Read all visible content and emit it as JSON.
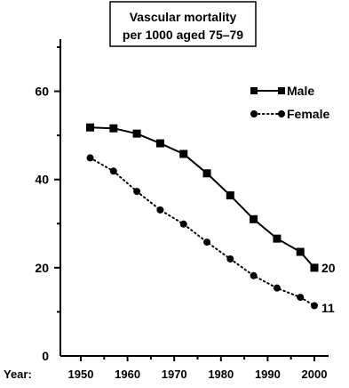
{
  "chart_data": {
    "type": "line",
    "title_lines": [
      "Vascular mortality",
      "per 1000 aged 75–79"
    ],
    "x_axis_prefix": "Year:",
    "x": [
      1952,
      1957,
      1962,
      1967,
      1972,
      1977,
      1982,
      1987,
      1992,
      1997,
      2000
    ],
    "xticks": [
      "1950",
      "1960",
      "1970",
      "1980",
      "1990",
      "2000"
    ],
    "yticks": [
      "0",
      "20",
      "40",
      "60"
    ],
    "xlim": [
      1950,
      2000
    ],
    "ylim": [
      0,
      70
    ],
    "grid": false,
    "legend_position": "top-right",
    "series": [
      {
        "name": "Male",
        "marker": "square",
        "line": "solid",
        "color": "#000000",
        "values": [
          51.8,
          51.6,
          50.4,
          48.2,
          45.8,
          41.4,
          36.4,
          31.0,
          26.6,
          23.6,
          20.0
        ],
        "end_label": "20"
      },
      {
        "name": "Female",
        "marker": "circle",
        "line": "dotted",
        "color": "#000000",
        "values": [
          44.9,
          41.9,
          37.3,
          33.1,
          29.9,
          25.8,
          22.0,
          18.2,
          15.4,
          13.3,
          11.4
        ],
        "end_label": "11"
      }
    ]
  }
}
